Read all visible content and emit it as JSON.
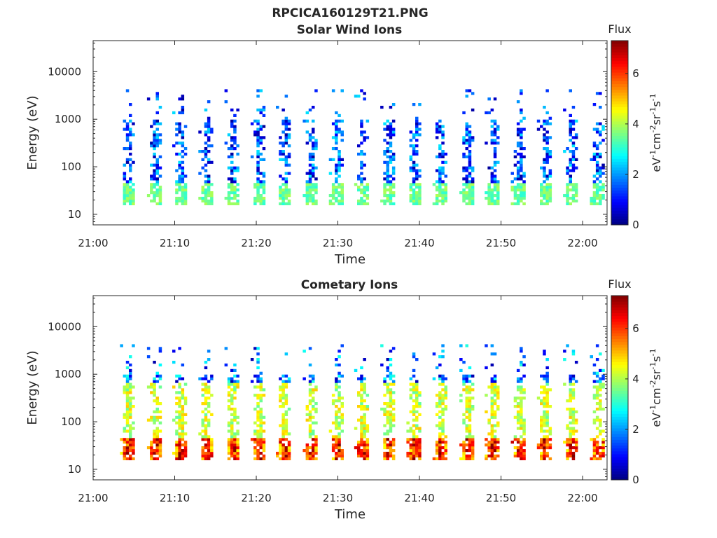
{
  "figure": {
    "title": "RPCICA160129T21.PNG"
  },
  "colorbar": {
    "label": "Flux",
    "unit_parts": [
      "eV",
      "-1",
      "cm",
      "-2",
      "sr",
      "-1",
      "s",
      "-1"
    ],
    "ticks": [
      "0",
      "2",
      "4",
      "6"
    ],
    "range": [
      0,
      7.3
    ],
    "colormap": "jet"
  },
  "chart_data": [
    {
      "type": "heatmap",
      "title": "Solar Wind Ions",
      "xlabel": "Time",
      "ylabel": "Energy (eV)",
      "yscale": "log",
      "ylim": [
        6,
        45000
      ],
      "xlim": [
        "21:00",
        "22:03"
      ],
      "xticks": [
        "21:00",
        "21:10",
        "21:20",
        "21:30",
        "21:40",
        "21:50",
        "22:00"
      ],
      "yticks": [
        "10",
        "100",
        "1000",
        "10000"
      ],
      "clim": [
        0,
        7.3
      ],
      "grid": false,
      "burst_centers": [
        "21:04.2",
        "21:07.5",
        "21:10.6",
        "21:13.8",
        "21:17.0",
        "21:20.2",
        "21:23.3",
        "21:26.6",
        "21:29.8",
        "21:32.9",
        "21:36.1",
        "21:39.3",
        "21:42.5",
        "21:45.8",
        "21:48.9",
        "21:52.1",
        "21:55.3",
        "21:58.5",
        "22:01.8"
      ],
      "bands": [
        {
          "energy_range": [
            15,
            45
          ],
          "flux_range": [
            3.0,
            4.0
          ]
        },
        {
          "energy_range": [
            45,
            800
          ],
          "flux_range": [
            0.2,
            2.6
          ]
        },
        {
          "energy_range": [
            800,
            4000
          ],
          "flux_range": [
            0.2,
            2.6
          ]
        }
      ]
    },
    {
      "type": "heatmap",
      "title": "Cometary Ions",
      "xlabel": "Time",
      "ylabel": "Energy (eV)",
      "yscale": "log",
      "ylim": [
        6,
        45000
      ],
      "xlim": [
        "21:00",
        "22:03"
      ],
      "xticks": [
        "21:00",
        "21:10",
        "21:20",
        "21:30",
        "21:40",
        "21:50",
        "22:00"
      ],
      "yticks": [
        "10",
        "100",
        "1000",
        "10000"
      ],
      "clim": [
        0,
        7.3
      ],
      "grid": false,
      "burst_centers": [
        "21:04.2",
        "21:07.5",
        "21:10.6",
        "21:13.8",
        "21:17.0",
        "21:20.2",
        "21:23.3",
        "21:26.6",
        "21:29.8",
        "21:32.9",
        "21:36.1",
        "21:39.3",
        "21:42.5",
        "21:45.8",
        "21:48.9",
        "21:52.1",
        "21:55.3",
        "21:58.5",
        "22:01.8"
      ],
      "bands": [
        {
          "energy_range": [
            15,
            45
          ],
          "flux_range": [
            4.5,
            6.8
          ]
        },
        {
          "energy_range": [
            45,
            600
          ],
          "flux_range": [
            3.4,
            5.0
          ]
        },
        {
          "energy_range": [
            600,
            4000
          ],
          "flux_range": [
            0.3,
            3.0
          ]
        }
      ]
    }
  ]
}
